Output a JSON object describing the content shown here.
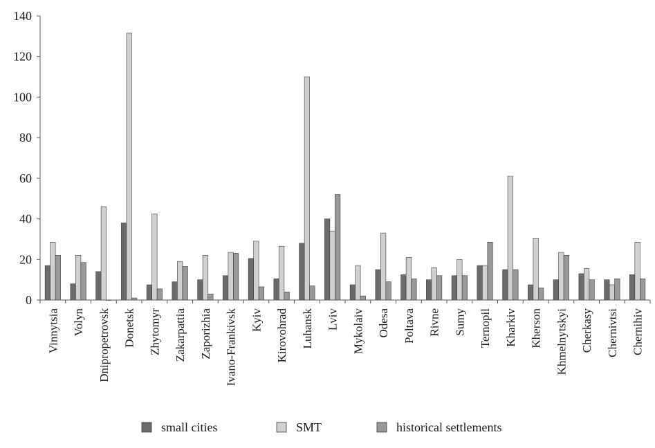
{
  "chart_data": {
    "type": "bar",
    "categories": [
      "Vinnytsia",
      "Volyn",
      "Dnipropetrovsk",
      "Donetsk",
      "Zhytomyr",
      "Zakarpattia",
      "Zaporizhia",
      "Ivano-Frankivsk",
      "Kyiv",
      "Kirovohrad",
      "Luhansk",
      "Lviv",
      "Mykolaiv",
      "Odesa",
      "Poltava",
      "Rivne",
      "Sumy",
      "Ternopil",
      "Kharkiv",
      "Kherson",
      "Khmelnytskyi",
      "Cherkasy",
      "Chernivtsi",
      "Chernihiv"
    ],
    "series": [
      {
        "name": "small cities",
        "color": "#6b6b6b",
        "values": [
          17,
          8,
          14,
          38,
          7.5,
          9,
          10,
          12,
          20.5,
          10.5,
          28,
          40,
          7.5,
          15,
          12.5,
          10,
          12,
          17,
          15,
          7.5,
          10,
          13,
          10,
          12.5
        ]
      },
      {
        "name": "SMT",
        "color": "#d0d0d0",
        "values": [
          28.5,
          22,
          46,
          131.5,
          42.5,
          19,
          22,
          23.5,
          29,
          26.5,
          110,
          34,
          17,
          33,
          21,
          16,
          20,
          17,
          61,
          30.5,
          23.5,
          15.5,
          7.5,
          28.5
        ]
      },
      {
        "name": "historical settlements",
        "color": "#999999",
        "values": [
          22,
          18.5,
          0,
          1,
          5.5,
          16.5,
          3,
          23,
          6.5,
          4,
          7,
          52,
          2,
          9,
          10.5,
          12,
          12,
          28.5,
          15,
          6,
          22,
          10,
          10.5,
          10.5
        ]
      }
    ],
    "xlabel": "",
    "ylabel": "",
    "ylim": [
      0,
      140
    ],
    "yticks": [
      "0",
      "20",
      "40",
      "60",
      "80",
      "100",
      "120",
      "140"
    ],
    "grid": false,
    "legend": "bottom"
  }
}
